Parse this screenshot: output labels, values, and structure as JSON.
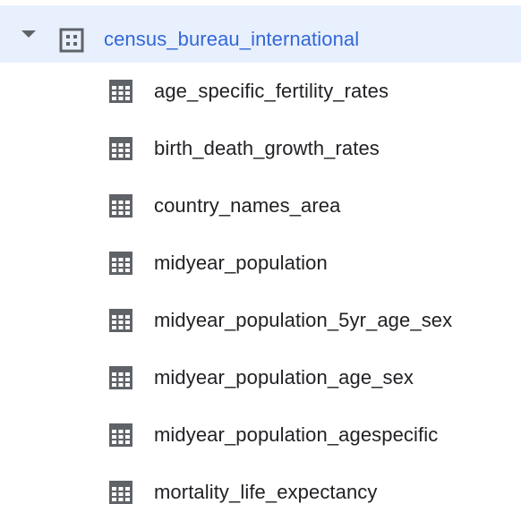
{
  "dataset": {
    "name": "census_bureau_international",
    "expanded": true,
    "icon": "dataset-grid-icon",
    "caret_icon": "caret-down-icon",
    "accent_color": "#3367d6",
    "highlight_color": "#e8f0fe"
  },
  "tables": [
    {
      "name": "age_specific_fertility_rates",
      "icon": "table-icon"
    },
    {
      "name": "birth_death_growth_rates",
      "icon": "table-icon"
    },
    {
      "name": "country_names_area",
      "icon": "table-icon"
    },
    {
      "name": "midyear_population",
      "icon": "table-icon"
    },
    {
      "name": "midyear_population_5yr_age_sex",
      "icon": "table-icon"
    },
    {
      "name": "midyear_population_age_sex",
      "icon": "table-icon"
    },
    {
      "name": "midyear_population_agespecific",
      "icon": "table-icon"
    },
    {
      "name": "mortality_life_expectancy",
      "icon": "table-icon"
    }
  ]
}
